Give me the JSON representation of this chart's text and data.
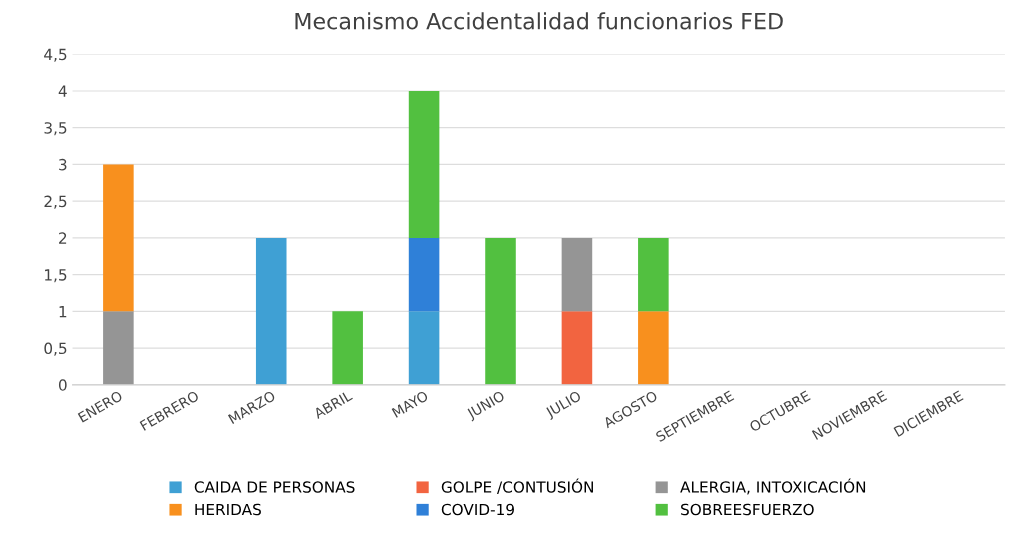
{
  "chart_data": {
    "type": "bar",
    "stacked": true,
    "title": "Mecanismo Accidentalidad funcionarios FED",
    "categories": [
      "ENERO",
      "FEBRERO",
      "MARZO",
      "ABRIL",
      "MAYO",
      "JUNIO",
      "JULIO",
      "AGOSTO",
      "SEPTIEMBRE",
      "OCTUBRE",
      "NOVIEMBRE",
      "DICIEMBRE"
    ],
    "series": [
      {
        "name": "CAIDA DE PERSONAS",
        "color": "#3fa0d4",
        "values": [
          null,
          null,
          2,
          null,
          1,
          null,
          null,
          null,
          null,
          null,
          null,
          null
        ]
      },
      {
        "name": "GOLPE /CONTUSIÓN",
        "color": "#f26440",
        "values": [
          null,
          null,
          null,
          null,
          null,
          null,
          1,
          null,
          null,
          null,
          null,
          null
        ]
      },
      {
        "name": "ALERGIA, INTOXICACIÓN",
        "color": "#959595",
        "values": [
          1,
          null,
          null,
          null,
          null,
          null,
          1,
          null,
          null,
          null,
          null,
          null
        ]
      },
      {
        "name": "HERIDAS",
        "color": "#f8901e",
        "values": [
          2,
          null,
          null,
          null,
          null,
          null,
          null,
          1,
          null,
          null,
          null,
          null
        ]
      },
      {
        "name": "COVID-19",
        "color": "#2f80d8",
        "values": [
          null,
          null,
          null,
          null,
          1,
          null,
          null,
          null,
          null,
          null,
          null,
          null
        ]
      },
      {
        "name": "SOBREESFUERZO",
        "color": "#52c040",
        "values": [
          null,
          null,
          null,
          1,
          2,
          2,
          null,
          1,
          null,
          null,
          null,
          null
        ]
      }
    ],
    "ylim": [
      0,
      4.5
    ],
    "yticks": [
      0,
      {
        "value": 0.5,
        "label": "0,5"
      },
      1,
      {
        "value": 1.5,
        "label": "1,5"
      },
      2,
      {
        "value": 2.5,
        "label": "2,5"
      },
      3,
      {
        "value": 3.5,
        "label": "3,5"
      },
      4,
      {
        "value": 4.5,
        "label": "4,5"
      }
    ],
    "grid": "y",
    "legend": "bottom"
  }
}
